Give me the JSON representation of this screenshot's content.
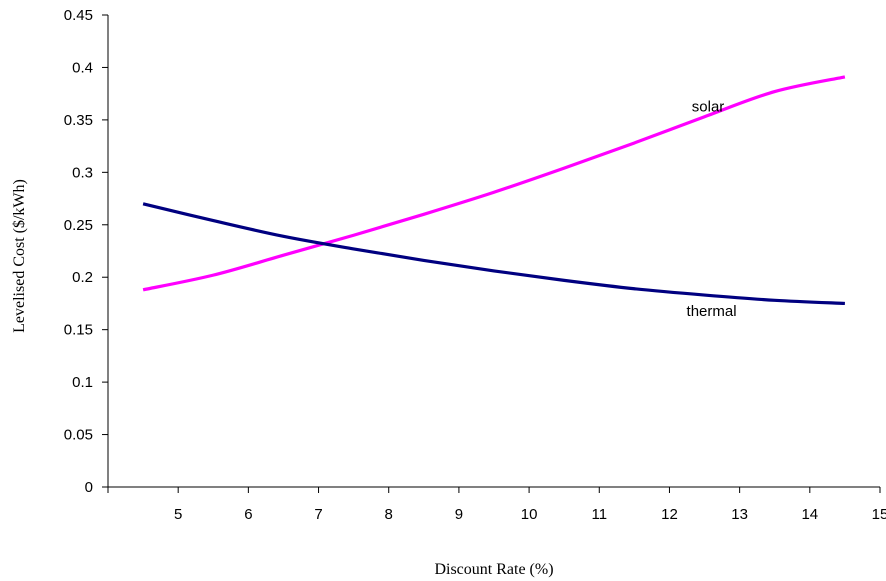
{
  "chart_data": {
    "type": "line",
    "xlabel": "Discount Rate (%)",
    "ylabel": "Levelised Cost ($/kWh)",
    "xlim": [
      4,
      15
    ],
    "ylim": [
      0,
      0.45
    ],
    "x_ticks": [
      "5",
      "6",
      "7",
      "8",
      "9",
      "10",
      "11",
      "12",
      "13",
      "14",
      "15"
    ],
    "y_ticks": [
      "0",
      "0.05",
      "0.1",
      "0.15",
      "0.2",
      "0.25",
      "0.3",
      "0.35",
      "0.4",
      "0.45"
    ],
    "grid": false,
    "legend": "none",
    "series": [
      {
        "name": "solar",
        "color": "#ff00ff",
        "x": [
          4.5,
          5.5,
          6.5,
          7.5,
          8.5,
          9.5,
          10.5,
          11.5,
          12.5,
          13.5,
          14.5
        ],
        "y": [
          0.188,
          0.202,
          0.221,
          0.24,
          0.26,
          0.281,
          0.304,
          0.328,
          0.353,
          0.377,
          0.391
        ]
      },
      {
        "name": "thermal",
        "color": "#000080",
        "x": [
          4.5,
          5.5,
          6.5,
          7.5,
          8.5,
          9.5,
          10.5,
          11.5,
          12.5,
          13.5,
          14.5
        ],
        "y": [
          0.27,
          0.254,
          0.239,
          0.227,
          0.216,
          0.206,
          0.197,
          0.189,
          0.183,
          0.178,
          0.175
        ]
      }
    ]
  }
}
